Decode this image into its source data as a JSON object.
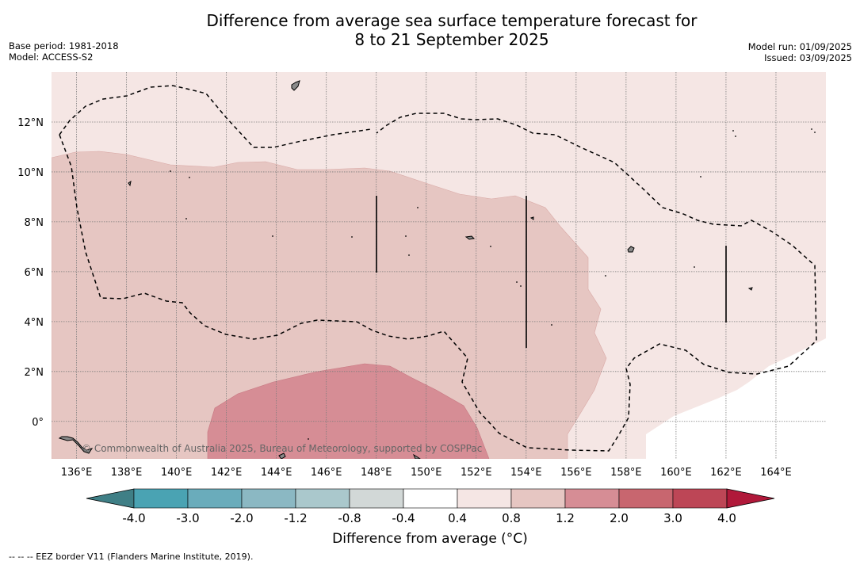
{
  "title_line1": "Difference from average sea surface temperature forecast for",
  "title_line2": "8 to 21 September 2025",
  "base_period": "Base period: 1981-2018",
  "model": "Model: ACCESS-S2",
  "model_run": "Model run: 01/09/2025",
  "issued": "Issued: 03/09/2025",
  "copyright": "© Commonwealth of Australia 2025, Bureau of Meteorology, supported by COSPPac",
  "footnote": "--  --  -- EEZ border V11 (Flanders Marine Institute, 2019).",
  "map": {
    "lon_range": [
      135,
      166
    ],
    "lat_range": [
      -1.5,
      14
    ],
    "lon_ticks": [
      {
        "value": 136,
        "label": "136°E"
      },
      {
        "value": 138,
        "label": "138°E"
      },
      {
        "value": 140,
        "label": "140°E"
      },
      {
        "value": 142,
        "label": "142°E"
      },
      {
        "value": 144,
        "label": "144°E"
      },
      {
        "value": 146,
        "label": "146°E"
      },
      {
        "value": 148,
        "label": "148°E"
      },
      {
        "value": 150,
        "label": "150°E"
      },
      {
        "value": 152,
        "label": "152°E"
      },
      {
        "value": 154,
        "label": "154°E"
      },
      {
        "value": 156,
        "label": "156°E"
      },
      {
        "value": 158,
        "label": "158°E"
      },
      {
        "value": 160,
        "label": "160°E"
      },
      {
        "value": 162,
        "label": "162°E"
      },
      {
        "value": 164,
        "label": "164°E"
      }
    ],
    "lat_ticks": [
      {
        "value": 12,
        "label": "12°N"
      },
      {
        "value": 10,
        "label": "10°N"
      },
      {
        "value": 8,
        "label": "8°N"
      },
      {
        "value": 6,
        "label": "6°N"
      },
      {
        "value": 4,
        "label": "4°N"
      },
      {
        "value": 2,
        "label": "2°N"
      },
      {
        "value": 0,
        "label": "0°"
      }
    ]
  },
  "colorbar": {
    "title": "Difference from average (°C)",
    "tick_labels": [
      "-4.0",
      "-3.0",
      "-2.0",
      "-1.2",
      "-0.8",
      "-0.4",
      "0.4",
      "0.8",
      "1.2",
      "2.0",
      "3.0",
      "4.0"
    ],
    "colors": [
      "#3f7f86",
      "#4aa3b3",
      "#6aacbb",
      "#8bb8c3",
      "#aac8cc",
      "#d2d8d7",
      "#ffffff",
      "#f5e6e4",
      "#e6c6c2",
      "#d68d95",
      "#c8666f",
      "#bd4656",
      "#b0193a"
    ]
  },
  "colors": {
    "band_04_08": "#f5e6e4",
    "band_08_12": "#e6c6c2",
    "band_12_20": "#d68d95",
    "land": "#8a8a8a"
  }
}
